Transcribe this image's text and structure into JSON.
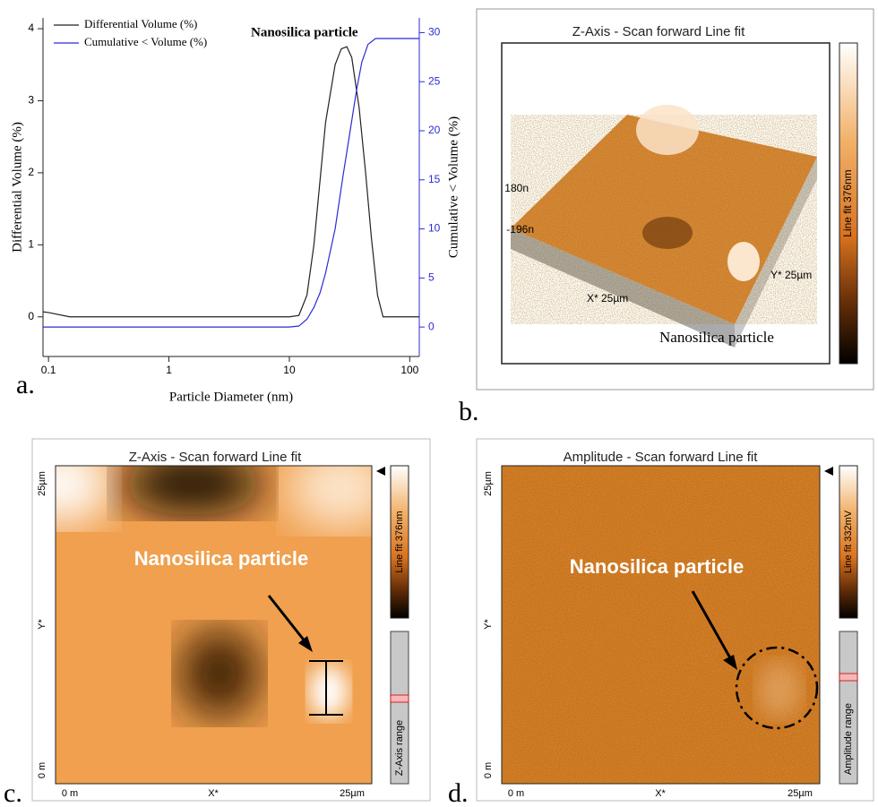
{
  "chart_data": {
    "type": "line",
    "log_x": true,
    "x_label": "Particle Diameter (nm)",
    "y_label": "Differential Volume (%)",
    "y2_label": "Cumulative < Volume (%)",
    "annotation": "Nanosilica particle",
    "xlim": [
      0.09,
      120
    ],
    "xticks": [
      0.1,
      1,
      10,
      100
    ],
    "ylim": [
      -0.55,
      4.15
    ],
    "yticks": [
      0,
      1,
      2,
      3,
      4
    ],
    "y2lim": [
      -3,
      31.5
    ],
    "y2ticks": [
      0,
      5,
      10,
      15,
      20,
      25,
      30
    ],
    "series": [
      {
        "name": "Differential Volume (%)",
        "color": "#222222",
        "x": [
          0.09,
          0.1,
          0.15,
          10,
          12,
          14,
          16,
          18,
          20,
          24,
          27,
          30,
          33,
          38,
          43,
          48,
          54,
          60,
          120
        ],
        "values": [
          0.07,
          0.06,
          0,
          0,
          0.02,
          0.3,
          1,
          1.9,
          2.7,
          3.5,
          3.72,
          3.75,
          3.6,
          2.9,
          2,
          1.1,
          0.3,
          0,
          0
        ]
      },
      {
        "name": "Cumulative < Volume (%)",
        "color": "#2b2bd6",
        "axis": "y2",
        "x": [
          0.09,
          10,
          12,
          14,
          16,
          18,
          20,
          24,
          28,
          32,
          36,
          40,
          45,
          52,
          120
        ],
        "values": [
          0,
          0,
          0.1,
          0.8,
          2,
          3.5,
          5.5,
          10,
          15.5,
          20,
          24,
          27,
          28.8,
          29.4,
          29.4
        ]
      }
    ]
  },
  "panel_labels": [
    "a.",
    "b.",
    "c.",
    "d."
  ],
  "afm_3d": {
    "title": "Z-Axis - Scan forward   Line fit",
    "z_max": "180n",
    "z_min": "-196n",
    "x_axis": "X* 25µm",
    "y_axis": "Y* 25µm",
    "annotation": "Nanosilica particle",
    "colorbar": "Line fit 376nm"
  },
  "afm_topography": {
    "title": "Z-Axis - Scan forward   Line fit",
    "y_top": "25µm",
    "y_mid": "Y*",
    "y_bottom": "0 m",
    "x_left": "0 m",
    "x_mid": "X*",
    "x_right": "25µm",
    "annotation": "Nanosilica particle",
    "colorbar": "Line fit 376nm",
    "range": "Z-Axis range"
  },
  "afm_amplitude": {
    "title": "Amplitude - Scan forward   Line fit",
    "y_top": "25µm",
    "y_mid": "Y*",
    "y_bottom": "0 m",
    "x_left": "0 m",
    "x_mid": "X*",
    "x_right": "25µm",
    "annotation": "Nanosilica particle",
    "colorbar": "Line fit 332mV",
    "range": "Amplitude range"
  }
}
